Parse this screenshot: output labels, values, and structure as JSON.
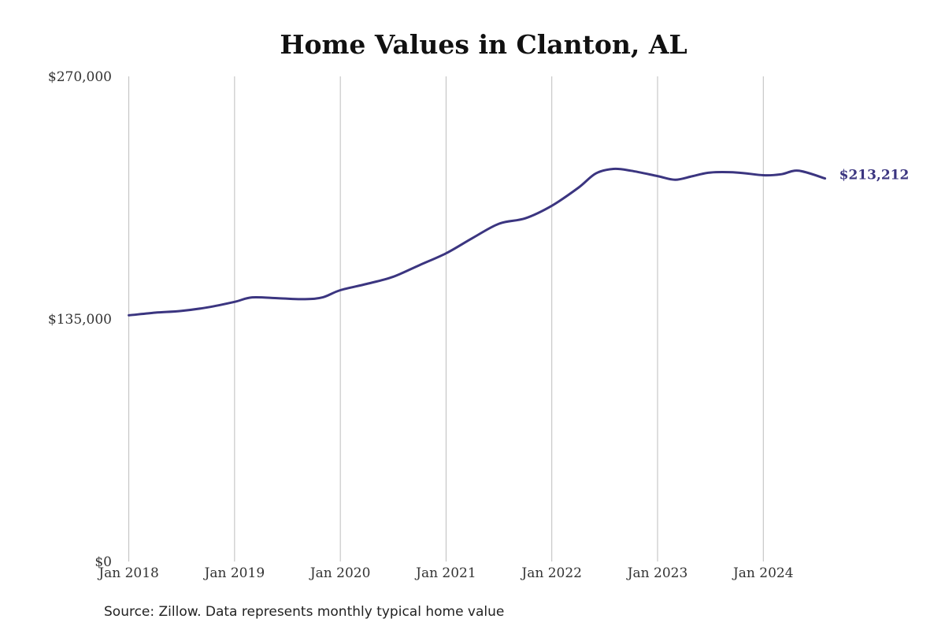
{
  "chart_data": {
    "type": "line",
    "title": "Home Values in Clanton, AL",
    "xlabel": "",
    "ylabel": "",
    "x_ticks": [
      "Jan 2018",
      "Jan 2019",
      "Jan 2020",
      "Jan 2021",
      "Jan 2022",
      "Jan 2023",
      "Jan 2024"
    ],
    "y_ticks": [
      "$0",
      "$135,000",
      "$270,000"
    ],
    "y_tick_values": [
      0,
      135000,
      270000
    ],
    "ylim": [
      0,
      270000
    ],
    "xlim": [
      "2017-10",
      "2024-10"
    ],
    "grid": {
      "vertical": true,
      "horizontal": false
    },
    "series": [
      {
        "color": "#3b3580",
        "points": [
          [
            "2018-01",
            137000
          ],
          [
            "2018-04",
            138500
          ],
          [
            "2018-07",
            139500
          ],
          [
            "2018-10",
            141500
          ],
          [
            "2019-01",
            144500
          ],
          [
            "2019-03",
            147000
          ],
          [
            "2019-06",
            146500
          ],
          [
            "2019-09",
            146000
          ],
          [
            "2019-11",
            147000
          ],
          [
            "2020-01",
            151000
          ],
          [
            "2020-04",
            154500
          ],
          [
            "2020-07",
            158500
          ],
          [
            "2020-10",
            165000
          ],
          [
            "2021-01",
            171500
          ],
          [
            "2021-04",
            180000
          ],
          [
            "2021-07",
            188000
          ],
          [
            "2021-10",
            191000
          ],
          [
            "2022-01",
            198000
          ],
          [
            "2022-04",
            208000
          ],
          [
            "2022-06",
            216000
          ],
          [
            "2022-08",
            218500
          ],
          [
            "2022-10",
            217500
          ],
          [
            "2023-01",
            214500
          ],
          [
            "2023-03",
            212500
          ],
          [
            "2023-05",
            214500
          ],
          [
            "2023-07",
            216500
          ],
          [
            "2023-10",
            216500
          ],
          [
            "2024-01",
            215000
          ],
          [
            "2024-03",
            215500
          ],
          [
            "2024-05",
            217500
          ],
          [
            "2024-08",
            213212
          ]
        ]
      }
    ],
    "end_label": "$213,212",
    "source_note": "Source: Zillow. Data represents monthly typical home value"
  }
}
